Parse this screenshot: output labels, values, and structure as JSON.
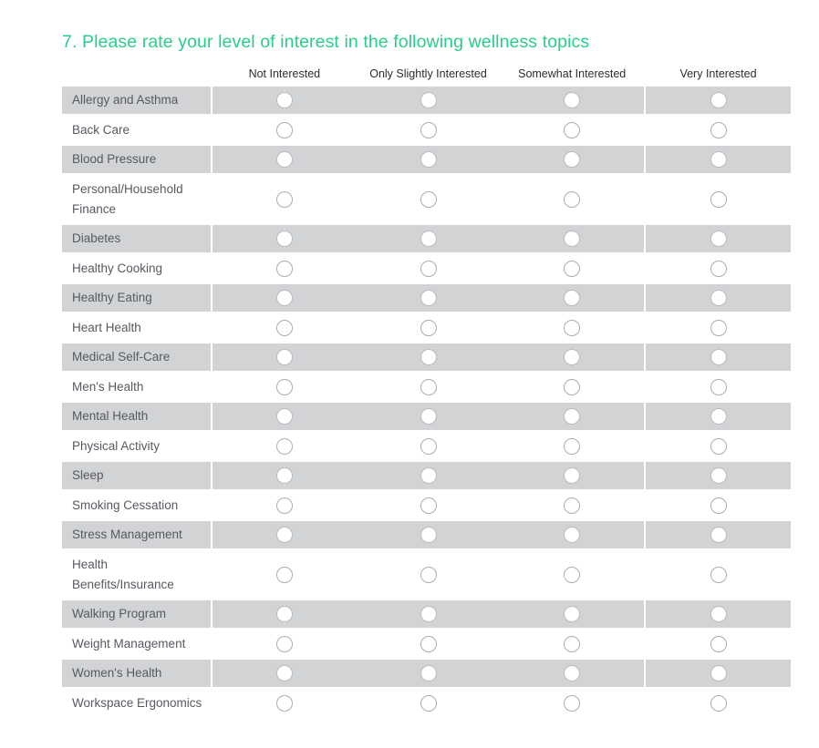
{
  "question": {
    "title": "7. Please rate your level of interest in the following wellness topics"
  },
  "columns": [
    "Not Interested",
    "Only Slightly Interested",
    "Somewhat Interested",
    "Very Interested"
  ],
  "rows": [
    {
      "label": "Allergy and Asthma"
    },
    {
      "label": "Back Care"
    },
    {
      "label": "Blood Pressure"
    },
    {
      "label": "Personal/Household Finance"
    },
    {
      "label": "Diabetes"
    },
    {
      "label": "Healthy Cooking"
    },
    {
      "label": "Healthy Eating"
    },
    {
      "label": "Heart Health"
    },
    {
      "label": "Medical Self-Care"
    },
    {
      "label": "Men's Health"
    },
    {
      "label": "Mental Health"
    },
    {
      "label": "Physical Activity"
    },
    {
      "label": "Sleep"
    },
    {
      "label": "Smoking Cessation"
    },
    {
      "label": "Stress Management"
    },
    {
      "label": "Health Benefits/Insurance"
    },
    {
      "label": "Walking Program"
    },
    {
      "label": "Weight Management"
    },
    {
      "label": "Women's Health"
    },
    {
      "label": "Workspace Ergonomics"
    }
  ],
  "colors": {
    "accent_green": "#2bcd8a",
    "row_shade": "#d2d3d5",
    "radio_border": "#a9adb2"
  },
  "radio_state": "all-unselected"
}
